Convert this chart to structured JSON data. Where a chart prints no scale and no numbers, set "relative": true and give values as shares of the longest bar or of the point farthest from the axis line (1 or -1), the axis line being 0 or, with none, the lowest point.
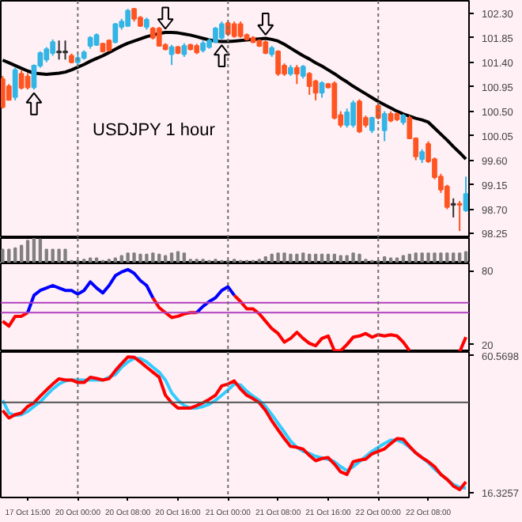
{
  "chart_data": [
    {
      "type": "candlestick",
      "annotations": [
        "USDJPY 1 hour"
      ],
      "categories": [
        null,
        null,
        null,
        null,
        "17 Oct 15:00",
        null,
        null,
        null,
        null,
        null,
        null,
        null,
        "20 Oct 00:00",
        null,
        null,
        null,
        null,
        null,
        null,
        null,
        "20 Oct 08:00",
        null,
        null,
        null,
        null,
        null,
        null,
        null,
        "20 Oct 16:00",
        null,
        null,
        null,
        null,
        null,
        null,
        null,
        "21 Oct 00:00",
        null,
        null,
        null,
        null,
        null,
        null,
        null,
        "21 Oct 08:00",
        null,
        null,
        null,
        null,
        null,
        null,
        null,
        "21 Oct 16:00",
        null,
        null,
        null,
        null,
        null,
        null,
        null,
        "22 Oct 00:00",
        null,
        null,
        null,
        null,
        null,
        null,
        null,
        "22 Oct 08:00",
        null,
        null,
        null,
        null,
        null,
        null
      ],
      "ohlc": [
        [
          101.09,
          101.15,
          100.55,
          100.58
        ],
        [
          100.96,
          101.0,
          100.7,
          100.71
        ],
        [
          100.76,
          101.3,
          100.7,
          101.26
        ],
        [
          101.19,
          101.25,
          100.9,
          100.93
        ],
        [
          101.14,
          101.2,
          100.9,
          100.94
        ],
        [
          100.94,
          101.36,
          100.9,
          101.34
        ],
        [
          101.34,
          101.6,
          101.3,
          101.57
        ],
        [
          101.45,
          101.68,
          101.4,
          101.64
        ],
        [
          101.57,
          101.82,
          101.52,
          101.77
        ],
        [
          101.6,
          101.8,
          101.45,
          101.58
        ],
        [
          101.58,
          101.8,
          101.45,
          101.6
        ],
        [
          101.52,
          101.56,
          101.38,
          101.4
        ],
        [
          101.4,
          101.55,
          101.35,
          101.48
        ],
        [
          101.48,
          101.62,
          101.45,
          101.58
        ],
        [
          101.7,
          101.88,
          101.65,
          101.85
        ],
        [
          101.72,
          101.93,
          101.7,
          101.9
        ],
        [
          101.74,
          101.76,
          101.58,
          101.6
        ],
        [
          101.8,
          101.82,
          101.6,
          101.62
        ],
        [
          101.77,
          102.12,
          101.75,
          102.1
        ],
        [
          102.05,
          102.2,
          102.0,
          102.15
        ],
        [
          102.07,
          102.38,
          102.05,
          102.35
        ],
        [
          102.38,
          102.4,
          102.15,
          102.2
        ],
        [
          102.22,
          102.25,
          102.05,
          102.07
        ],
        [
          102.05,
          102.22,
          102.0,
          102.18
        ],
        [
          102.02,
          102.05,
          101.82,
          101.85
        ],
        [
          102.02,
          102.05,
          101.7,
          101.7
        ],
        [
          101.72,
          101.75,
          101.62,
          101.64
        ],
        [
          101.55,
          101.72,
          101.35,
          101.68
        ],
        [
          101.68,
          101.7,
          101.55,
          101.57
        ],
        [
          101.55,
          101.75,
          101.5,
          101.7
        ],
        [
          101.72,
          101.74,
          101.62,
          101.64
        ],
        [
          101.7,
          101.74,
          101.55,
          101.58
        ],
        [
          101.62,
          101.8,
          101.58,
          101.75
        ],
        [
          101.68,
          101.84,
          101.65,
          101.8
        ],
        [
          101.77,
          102.05,
          101.75,
          102.02
        ],
        [
          101.85,
          102.15,
          101.82,
          102.1
        ],
        [
          102.12,
          102.15,
          101.88,
          101.92
        ],
        [
          102.1,
          102.15,
          101.85,
          101.88
        ],
        [
          102.1,
          102.15,
          101.85,
          101.88
        ],
        [
          101.9,
          101.93,
          101.8,
          101.82
        ],
        [
          101.85,
          101.88,
          101.75,
          101.77
        ],
        [
          101.8,
          101.82,
          101.68,
          101.7
        ],
        [
          101.77,
          101.8,
          101.55,
          101.57
        ],
        [
          101.55,
          101.7,
          101.5,
          101.66
        ],
        [
          101.6,
          101.62,
          101.15,
          101.19
        ],
        [
          101.34,
          101.38,
          101.15,
          101.19
        ],
        [
          101.19,
          101.35,
          101.15,
          101.3
        ],
        [
          101.3,
          101.35,
          101.0,
          101.19
        ],
        [
          101.15,
          101.35,
          101.1,
          101.32
        ],
        [
          101.19,
          101.22,
          100.8,
          100.96
        ],
        [
          101.05,
          101.08,
          100.7,
          100.84
        ],
        [
          100.84,
          101.05,
          100.75,
          101.02
        ],
        [
          101.0,
          101.02,
          100.92,
          100.94
        ],
        [
          101.01,
          101.05,
          100.35,
          100.38
        ],
        [
          100.43,
          100.5,
          100.2,
          100.25
        ],
        [
          100.25,
          100.55,
          100.2,
          100.48
        ],
        [
          100.25,
          100.7,
          100.2,
          100.65
        ],
        [
          100.68,
          100.72,
          100.1,
          100.13
        ],
        [
          100.38,
          100.42,
          100.2,
          100.25
        ],
        [
          100.15,
          100.4,
          100.1,
          100.38
        ],
        [
          100.6,
          100.65,
          100.35,
          100.38
        ],
        [
          100.15,
          100.5,
          99.95,
          100.45
        ],
        [
          100.45,
          100.5,
          100.3,
          100.33
        ],
        [
          100.45,
          100.48,
          100.32,
          100.35
        ],
        [
          100.3,
          100.45,
          100.25,
          100.42
        ],
        [
          100.38,
          100.42,
          100.0,
          100.0
        ],
        [
          100.0,
          100.02,
          99.6,
          99.67
        ],
        [
          99.62,
          99.8,
          99.55,
          99.75
        ],
        [
          99.9,
          99.95,
          99.55,
          99.58
        ],
        [
          99.62,
          99.65,
          99.25,
          99.29
        ],
        [
          99.3,
          99.35,
          99.0,
          99.06
        ],
        [
          99.12,
          99.15,
          98.7,
          98.74
        ],
        [
          98.8,
          98.9,
          98.55,
          98.78
        ],
        [
          98.8,
          98.85,
          98.3,
          98.78
        ],
        [
          98.68,
          99.3,
          98.65,
          98.98
        ]
      ],
      "colors": [
        "#ff5522",
        "#ff5522",
        "#33b5e5",
        "#ff5522",
        "#ff5522",
        "#33b5e5",
        "#33b5e5",
        "#33b5e5",
        "#33b5e5",
        "#303030",
        "#303030",
        "#ff5522",
        "#33b5e5",
        "#33b5e5",
        "#33b5e5",
        "#33b5e5",
        "#ff5522",
        "#ff5522",
        "#33b5e5",
        "#33b5e5",
        "#33b5e5",
        "#ff5522",
        "#ff5522",
        "#33b5e5",
        "#ff5522",
        "#ff5522",
        "#ff5522",
        "#33b5e5",
        "#ff5522",
        "#33b5e5",
        "#ff5522",
        "#ff5522",
        "#33b5e5",
        "#33b5e5",
        "#33b5e5",
        "#33b5e5",
        "#ff5522",
        "#ff5522",
        "#ff5522",
        "#ff5522",
        "#ff5522",
        "#ff5522",
        "#ff5522",
        "#33b5e5",
        "#ff5522",
        "#ff5522",
        "#33b5e5",
        "#ff5522",
        "#33b5e5",
        "#ff5522",
        "#ff5522",
        "#33b5e5",
        "#ff5522",
        "#ff5522",
        "#ff5522",
        "#33b5e5",
        "#33b5e5",
        "#ff5522",
        "#ff5522",
        "#33b5e5",
        "#ff5522",
        "#33b5e5",
        "#ff5522",
        "#ff5522",
        "#33b5e5",
        "#ff5522",
        "#ff5522",
        "#33b5e5",
        "#ff5522",
        "#ff5522",
        "#ff5522",
        "#ff5522",
        "#303030",
        "#ff5522",
        "#33b5e5"
      ],
      "series": [
        {
          "type": "line",
          "color": "#000000",
          "values": [
            101.44,
            101.39,
            101.34,
            101.29,
            101.24,
            101.2,
            101.19,
            101.18,
            101.19,
            101.2,
            101.22,
            101.26,
            101.31,
            101.36,
            101.42,
            101.47,
            101.52,
            101.58,
            101.64,
            101.7,
            101.75,
            101.79,
            101.83,
            101.87,
            101.9,
            101.93,
            101.95,
            101.95,
            101.94,
            101.92,
            101.9,
            101.87,
            101.84,
            101.81,
            101.79,
            101.78,
            101.78,
            101.79,
            101.8,
            101.81,
            101.82,
            101.83,
            101.84,
            101.82,
            101.79,
            101.73,
            101.66,
            101.59,
            101.52,
            101.46,
            101.39,
            101.33,
            101.26,
            101.19,
            101.11,
            101.04,
            100.96,
            100.89,
            100.82,
            100.75,
            100.68,
            100.62,
            100.56,
            100.5,
            100.45,
            100.41,
            100.37,
            100.34,
            100.3,
            100.19,
            100.08,
            99.97,
            99.85,
            99.74,
            99.62
          ]
        }
      ],
      "ylim": [
        98.17,
        102.53
      ],
      "yticks": [
        {
          "value": 102.3,
          "label": "102.30"
        },
        {
          "value": 101.85,
          "label": "101.85"
        },
        {
          "value": 101.4,
          "label": "101.40"
        },
        {
          "value": 100.95,
          "label": "100.95"
        },
        {
          "value": 100.5,
          "label": "100.50"
        },
        {
          "value": 100.05,
          "label": "100.05"
        },
        {
          "value": 99.6,
          "label": "99.60"
        },
        {
          "value": 99.15,
          "label": "99.15"
        },
        {
          "value": 98.7,
          "label": "98.70"
        },
        {
          "value": 98.25,
          "label": "98.25"
        }
      ],
      "tick_labels": "y",
      "ref_lines": [
        {
          "axis": "x",
          "value": "20 Oct 00:00",
          "color": "#707070",
          "line_style": "dotted"
        },
        {
          "axis": "x",
          "value": "21 Oct 00:00",
          "color": "#707070",
          "line_style": "dotted"
        },
        {
          "axis": "x",
          "value": "22 Oct 00:00",
          "color": "#707070",
          "line_style": "dotted"
        }
      ]
    },
    {
      "type": "bar",
      "relative": true,
      "color": "#808080",
      "tick_labels": false,
      "categories": [
        null,
        null,
        null,
        null,
        "17 Oct 15:00",
        null,
        null,
        null,
        null,
        null,
        null,
        null,
        "20 Oct 00:00",
        null,
        null,
        null,
        null,
        null,
        null,
        null,
        "20 Oct 08:00",
        null,
        null,
        null,
        null,
        null,
        null,
        null,
        "20 Oct 16:00",
        null,
        null,
        null,
        null,
        null,
        null,
        null,
        "21 Oct 00:00",
        null,
        null,
        null,
        null,
        null,
        null,
        null,
        "21 Oct 08:00",
        null,
        null,
        null,
        null,
        null,
        null,
        null,
        "21 Oct 16:00",
        null,
        null,
        null,
        null,
        null,
        null,
        null,
        "22 Oct 00:00",
        null,
        null,
        null,
        null,
        null,
        null,
        null,
        "22 Oct 08:00",
        null,
        null,
        null,
        null,
        null,
        null
      ],
      "values": [
        0.55,
        0.55,
        0.6,
        0.7,
        0.9,
        1.0,
        0.95,
        0.55,
        0.55,
        0.55,
        0.55,
        0.1,
        0.1,
        0.15,
        0.2,
        0.2,
        0.1,
        0.15,
        0.2,
        0.3,
        0.4,
        0.4,
        0.35,
        0.35,
        0.4,
        0.35,
        0.3,
        0.4,
        0.45,
        0.4,
        0.15,
        0.15,
        0.15,
        0.1,
        0.15,
        0.1,
        0.1,
        0.15,
        0.1,
        0.1,
        0.1,
        0.15,
        0.25,
        0.35,
        0.4,
        0.4,
        0.35,
        0.35,
        0.4,
        0.35,
        0.35,
        0.35,
        0.35,
        0.35,
        0.3,
        0.3,
        0.4,
        0.35,
        0.15,
        0.1,
        0.1,
        0.25,
        0.2,
        0.2,
        0.3,
        0.35,
        0.4,
        0.4,
        0.4,
        0.4,
        0.4,
        0.4,
        0.4,
        0.4,
        0.45
      ],
      "ref_lines": [
        {
          "axis": "x",
          "value": "20 Oct 00:00",
          "color": "#707070",
          "line_style": "dotted"
        },
        {
          "axis": "x",
          "value": "21 Oct 00:00",
          "color": "#707070",
          "line_style": "dotted"
        },
        {
          "axis": "x",
          "value": "22 Oct 00:00",
          "color": "#707070",
          "line_style": "dotted"
        }
      ]
    },
    {
      "type": "line",
      "tick_labels": "y",
      "ylim": [
        14,
        86
      ],
      "yticks": [
        80,
        20
      ],
      "categories": [
        null,
        null,
        null,
        null,
        "17 Oct 15:00",
        null,
        null,
        null,
        null,
        null,
        null,
        null,
        "20 Oct 00:00",
        null,
        null,
        null,
        null,
        null,
        null,
        null,
        "20 Oct 08:00",
        null,
        null,
        null,
        null,
        null,
        null,
        null,
        "20 Oct 16:00",
        null,
        null,
        null,
        null,
        null,
        null,
        null,
        "21 Oct 00:00",
        null,
        null,
        null,
        null,
        null,
        null,
        null,
        "21 Oct 08:00",
        null,
        null,
        null,
        null,
        null,
        null,
        null,
        "21 Oct 16:00",
        null,
        null,
        null,
        null,
        null,
        null,
        null,
        "22 Oct 00:00",
        null,
        null,
        null,
        null,
        null,
        null,
        null,
        "22 Oct 08:00",
        null,
        null,
        null,
        null,
        null,
        null
      ],
      "series": [
        {
          "color": "#ff0000",
          "values": [
            39,
            35,
            43,
            43,
            46,
            null,
            null,
            null,
            null,
            null,
            null,
            null,
            null,
            null,
            null,
            null,
            null,
            null,
            null,
            null,
            null,
            null,
            null,
            null,
            58,
            50,
            46,
            42,
            43,
            45,
            46,
            46,
            null,
            null,
            null,
            null,
            null,
            60,
            55,
            49,
            49,
            45,
            39,
            33,
            29,
            22,
            25,
            30,
            25,
            21,
            19,
            25,
            27,
            15,
            15,
            20,
            26,
            27,
            29,
            26,
            28,
            27,
            28,
            27,
            22,
            15,
            null,
            null,
            null,
            null,
            null,
            null,
            null,
            14,
            26
          ]
        },
        {
          "color": "#0000ff",
          "values": [
            null,
            null,
            null,
            null,
            46,
            60,
            64,
            66,
            68,
            66,
            64,
            64,
            61,
            64,
            71,
            66,
            62,
            68,
            76,
            79,
            81,
            78,
            72,
            68,
            58,
            null,
            null,
            null,
            null,
            null,
            null,
            46,
            51,
            55,
            58,
            64,
            67,
            60,
            null,
            null,
            null,
            null,
            null,
            null,
            null,
            null,
            null,
            null,
            null,
            null,
            null,
            null,
            null,
            null,
            null,
            null,
            null,
            null,
            null,
            null,
            null,
            null,
            null,
            null,
            null,
            null,
            null,
            null,
            null,
            null,
            null,
            null,
            null,
            null,
            null
          ]
        }
      ],
      "ref_lines": [
        {
          "axis": "y",
          "value": 54,
          "color": "#b040c0",
          "line_style": "solid"
        },
        {
          "axis": "y",
          "value": 46,
          "color": "#b040c0",
          "line_style": "solid"
        },
        {
          "axis": "x",
          "value": "20 Oct 00:00",
          "color": "#707070",
          "line_style": "dotted"
        },
        {
          "axis": "x",
          "value": "21 Oct 00:00",
          "color": "#707070",
          "line_style": "dotted"
        },
        {
          "axis": "x",
          "value": "22 Oct 00:00",
          "color": "#707070",
          "line_style": "dotted"
        }
      ]
    },
    {
      "type": "line",
      "ylim": [
        14.8,
        61.5
      ],
      "yticks": [
        60.5698,
        16.3257
      ],
      "categories": [
        null,
        null,
        null,
        null,
        "17 Oct 15:00",
        null,
        null,
        null,
        null,
        null,
        null,
        null,
        "20 Oct 00:00",
        null,
        null,
        null,
        null,
        null,
        null,
        null,
        "20 Oct 08:00",
        null,
        null,
        null,
        null,
        null,
        null,
        null,
        "20 Oct 16:00",
        null,
        null,
        null,
        null,
        null,
        null,
        null,
        "21 Oct 00:00",
        null,
        null,
        null,
        null,
        null,
        null,
        null,
        "21 Oct 08:00",
        null,
        null,
        null,
        null,
        null,
        null,
        null,
        "21 Oct 16:00",
        null,
        null,
        null,
        null,
        null,
        null,
        null,
        "22 Oct 00:00",
        null,
        null,
        null,
        null,
        null,
        null,
        null,
        "22 Oct 08:00",
        null,
        null,
        null,
        null,
        null,
        null
      ],
      "series": [
        {
          "color": "#33ccff",
          "values": [
            46.0,
            41.9,
            41.1,
            41.4,
            42.4,
            44.0,
            45.5,
            47.6,
            49.6,
            51.2,
            52.2,
            52.5,
            52.5,
            52.5,
            52.5,
            52.5,
            52.5,
            53.4,
            54.2,
            56.6,
            58.3,
            59.4,
            59.4,
            58.3,
            56.6,
            55.0,
            52.5,
            48.4,
            46.0,
            44.3,
            43.5,
            43.5,
            44.0,
            44.7,
            46.0,
            47.6,
            49.3,
            51.2,
            50.9,
            48.9,
            47.3,
            46.0,
            44.0,
            41.4,
            38.6,
            35.8,
            32.9,
            30.9,
            29.6,
            28.9,
            28.0,
            27.5,
            27.0,
            26.3,
            24.7,
            23.4,
            24.7,
            26.3,
            28.0,
            29.6,
            30.9,
            32.1,
            33.2,
            33.2,
            32.4,
            30.9,
            29.1,
            27.6,
            26.0,
            23.9,
            22.2,
            20.6,
            19.0,
            18.1,
            17.8
          ]
        },
        {
          "color": "#ff0000",
          "values": [
            42.7,
            40.3,
            41.4,
            41.9,
            44.0,
            45.2,
            47.3,
            49.3,
            51.2,
            52.9,
            52.5,
            52.5,
            51.7,
            51.7,
            53.4,
            53.0,
            52.5,
            52.9,
            55.5,
            57.8,
            59.9,
            59.8,
            58.3,
            56.6,
            55.0,
            53.4,
            47.6,
            45.2,
            43.5,
            43.5,
            43.5,
            44.3,
            45.2,
            46.3,
            47.6,
            50.6,
            51.2,
            52.2,
            49.6,
            47.6,
            46.5,
            45.2,
            42.7,
            39.4,
            36.5,
            33.7,
            31.2,
            30.9,
            30.3,
            28.3,
            26.6,
            27.3,
            27.6,
            25.5,
            23.0,
            22.2,
            26.3,
            26.8,
            27.1,
            28.8,
            29.6,
            30.4,
            32.1,
            33.7,
            33.5,
            31.2,
            29.1,
            27.6,
            26.3,
            24.7,
            22.2,
            20.6,
            18.5,
            17.3,
            19.8
          ]
        }
      ],
      "ref_lines": [
        {
          "axis": "y",
          "value": 45.3,
          "color": "#505050",
          "line_style": "solid"
        },
        {
          "axis": "x",
          "value": "20 Oct 00:00",
          "color": "#707070",
          "line_style": "dotted"
        },
        {
          "axis": "x",
          "value": "21 Oct 00:00",
          "color": "#707070",
          "line_style": "dotted"
        },
        {
          "axis": "x",
          "value": "22 Oct 00:00",
          "color": "#707070",
          "line_style": "dotted"
        }
      ]
    }
  ]
}
